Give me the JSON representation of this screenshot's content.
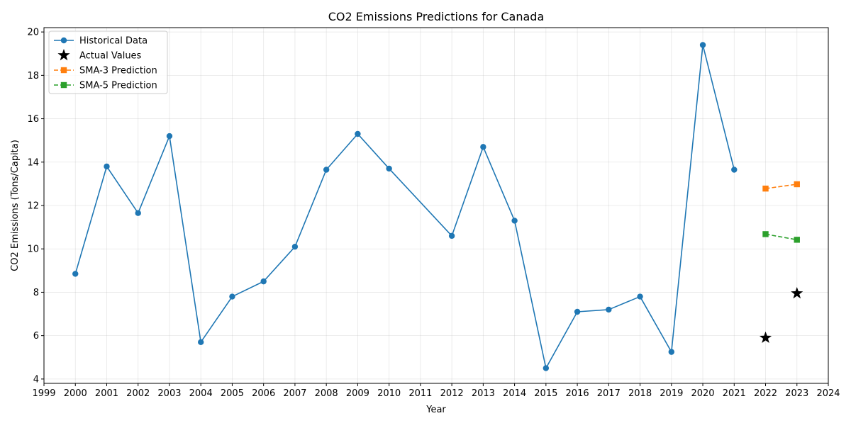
{
  "chart_data": {
    "type": "line",
    "title": "CO2 Emissions Predictions for Canada",
    "xlabel": "Year",
    "ylabel": "CO2 Emissions (Tons/Capita)",
    "xlim": [
      1999,
      2024
    ],
    "ylim": [
      3.8,
      20.2
    ],
    "x_ticks": [
      "1999",
      "2000",
      "2001",
      "2002",
      "2003",
      "2004",
      "2005",
      "2006",
      "2007",
      "2008",
      "2009",
      "2010",
      "2011",
      "2012",
      "2013",
      "2014",
      "2015",
      "2016",
      "2017",
      "2018",
      "2019",
      "2020",
      "2021",
      "2022",
      "2023",
      "2024"
    ],
    "y_ticks": [
      "4",
      "6",
      "8",
      "10",
      "12",
      "14",
      "16",
      "18",
      "20"
    ],
    "grid": true,
    "legend_position": "top-left",
    "series": [
      {
        "name": "Historical Data",
        "style": "solid-circle",
        "color": "#1f77b4",
        "x": [
          2000,
          2001,
          2002,
          2003,
          2004,
          2005,
          2006,
          2007,
          2008,
          2009,
          2010,
          2012,
          2013,
          2014,
          2015,
          2016,
          2017,
          2018,
          2019,
          2020,
          2021
        ],
        "y": [
          8.85,
          13.8,
          11.65,
          15.2,
          5.7,
          7.8,
          8.5,
          10.1,
          13.65,
          15.3,
          13.7,
          10.6,
          14.7,
          11.3,
          4.5,
          7.1,
          7.2,
          7.8,
          5.25,
          19.4,
          13.65
        ]
      },
      {
        "name": "Actual Values",
        "style": "star-marker",
        "color": "#000000",
        "x": [
          2022,
          2023
        ],
        "y": [
          5.9,
          7.95
        ]
      },
      {
        "name": "SMA-3 Prediction",
        "style": "dashed-square",
        "color": "#ff7f0e",
        "x": [
          2022,
          2023
        ],
        "y": [
          12.78,
          12.98
        ]
      },
      {
        "name": "SMA-5 Prediction",
        "style": "dashed-square",
        "color": "#2ca02c",
        "x": [
          2022,
          2023
        ],
        "y": [
          10.68,
          10.42
        ]
      }
    ]
  }
}
